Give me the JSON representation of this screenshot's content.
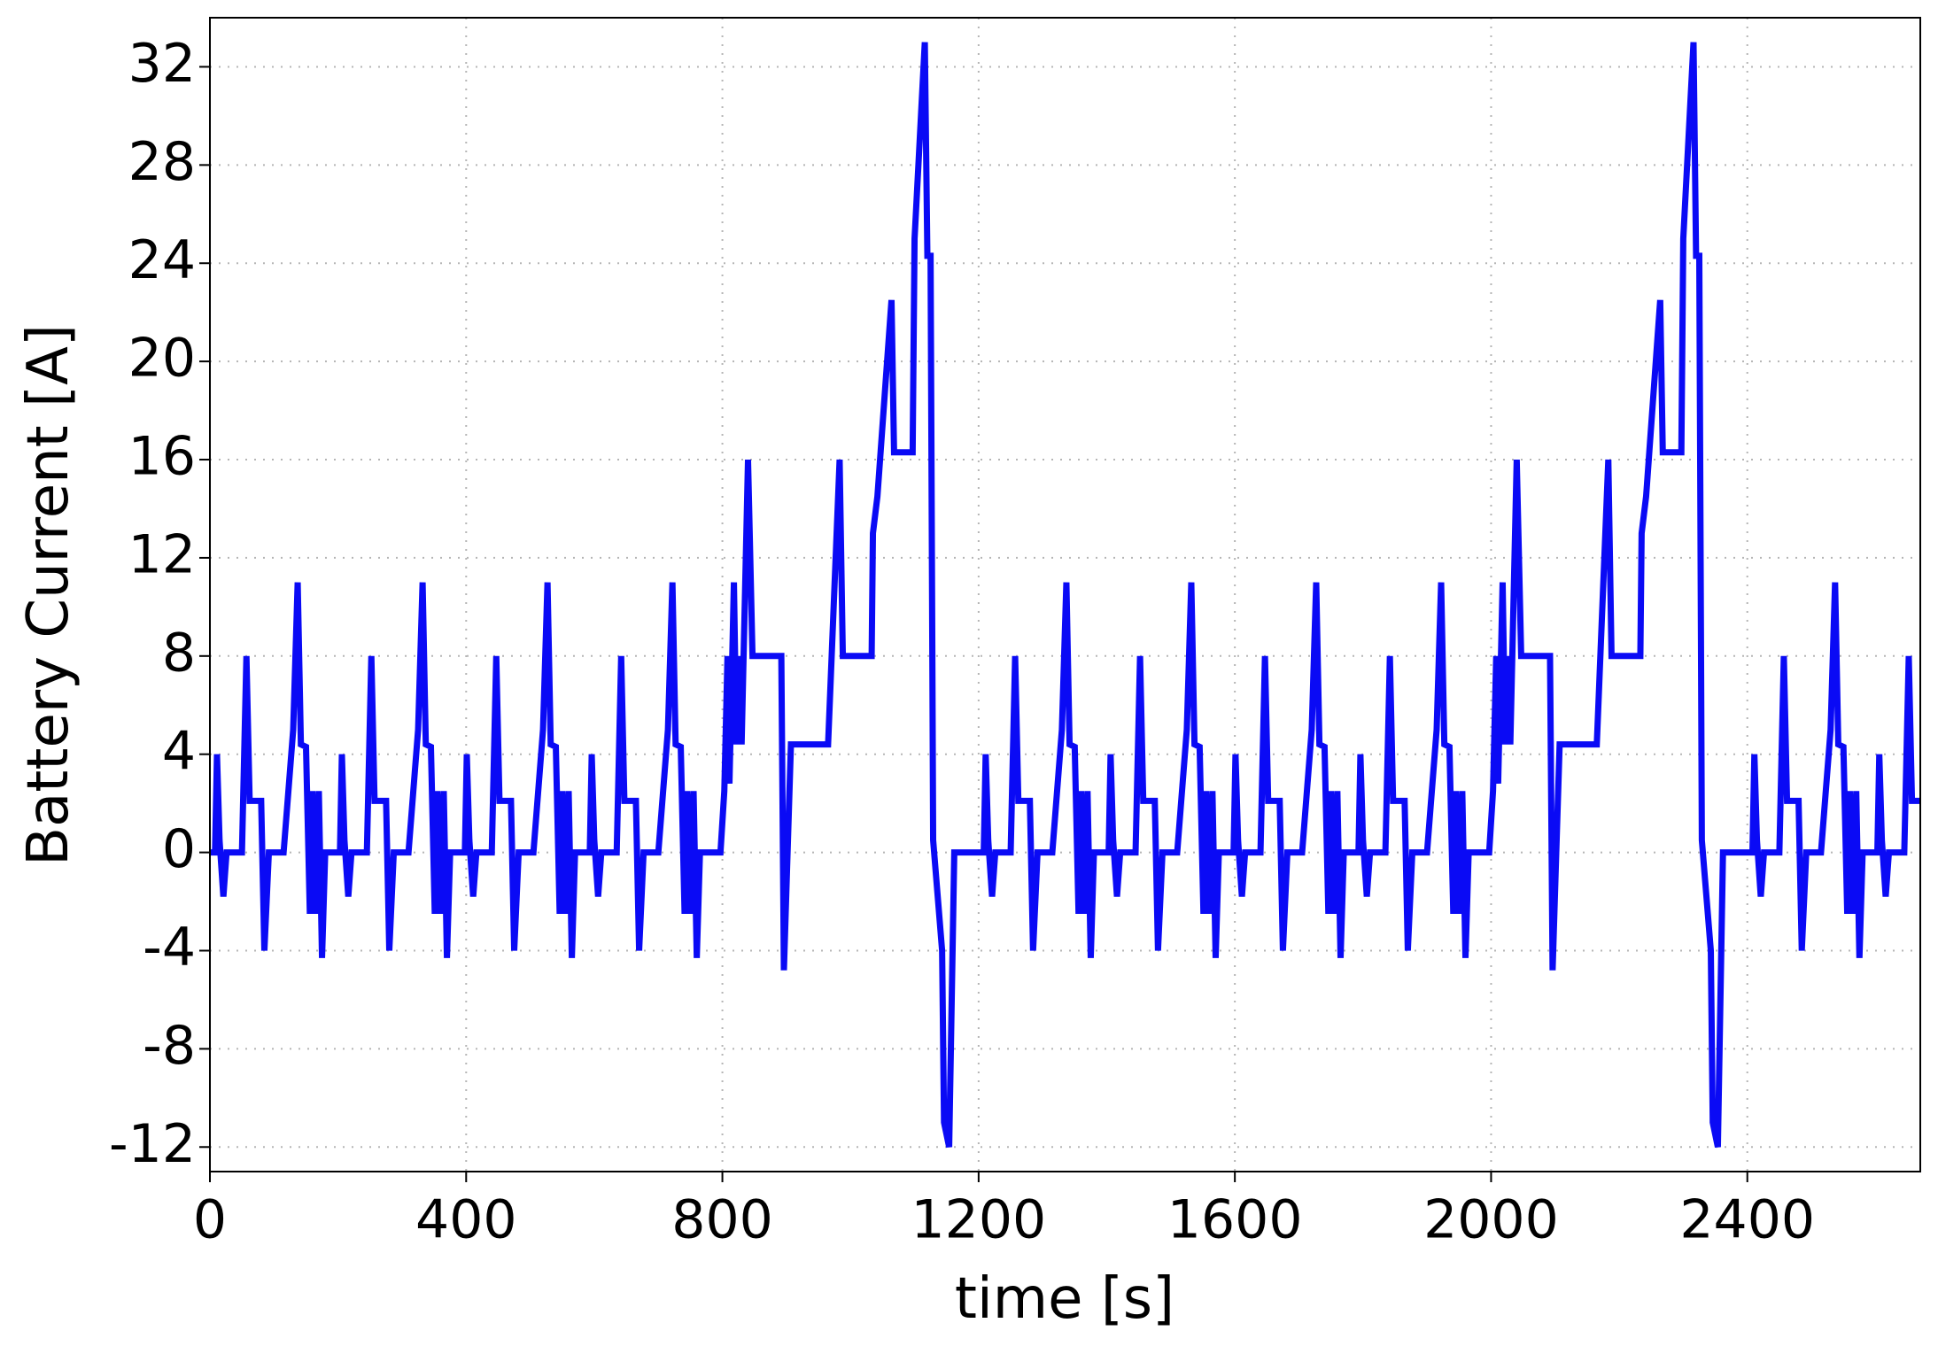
{
  "chart_data": {
    "type": "line",
    "x_label": "time [s]",
    "y_label": "Battery Current [A]",
    "xlim": [
      0,
      2670
    ],
    "ylim": [
      -13,
      34
    ],
    "xticks": [
      0,
      400,
      800,
      1200,
      1600,
      2000,
      2400
    ],
    "yticks": [
      -12,
      -8,
      -4,
      0,
      4,
      8,
      12,
      16,
      20,
      24,
      28,
      32
    ],
    "grid": true,
    "x": [
      0,
      8,
      11,
      15,
      21,
      26,
      50,
      57,
      62,
      80,
      85,
      92,
      115,
      130,
      137,
      142,
      150,
      156,
      160,
      165,
      170,
      175,
      180,
      195,
      203,
      206,
      210,
      216,
      221,
      245,
      252,
      257,
      275,
      280,
      287,
      310,
      325,
      332,
      337,
      345,
      351,
      355,
      360,
      365,
      370,
      375,
      390,
      398,
      401,
      405,
      411,
      416,
      440,
      447,
      452,
      470,
      475,
      482,
      505,
      520,
      527,
      532,
      540,
      546,
      550,
      555,
      560,
      565,
      570,
      585,
      593,
      596,
      600,
      606,
      611,
      635,
      642,
      647,
      665,
      670,
      677,
      700,
      715,
      722,
      727,
      735,
      741,
      745,
      750,
      755,
      760,
      765,
      797,
      803,
      808,
      811,
      818,
      822,
      826,
      830,
      840,
      847,
      892,
      896,
      907,
      965,
      983,
      988,
      1033,
      1035,
      1042,
      1064,
      1068,
      1097,
      1100,
      1116,
      1120,
      1125,
      1129,
      1143,
      1146,
      1154,
      1162,
      1200,
      1208,
      1211,
      1215,
      1221,
      1226,
      1250,
      1257,
      1262,
      1280,
      1285,
      1292,
      1315,
      1330,
      1337,
      1342,
      1350,
      1356,
      1360,
      1365,
      1370,
      1375,
      1380,
      1395,
      1403,
      1406,
      1410,
      1416,
      1421,
      1445,
      1452,
      1457,
      1475,
      1480,
      1487,
      1510,
      1525,
      1532,
      1537,
      1545,
      1551,
      1555,
      1560,
      1565,
      1570,
      1575,
      1590,
      1598,
      1601,
      1605,
      1611,
      1616,
      1640,
      1647,
      1652,
      1670,
      1675,
      1682,
      1705,
      1720,
      1727,
      1732,
      1740,
      1746,
      1750,
      1755,
      1760,
      1765,
      1770,
      1785,
      1793,
      1796,
      1800,
      1806,
      1811,
      1835,
      1842,
      1847,
      1865,
      1870,
      1877,
      1900,
      1915,
      1922,
      1927,
      1935,
      1941,
      1945,
      1950,
      1955,
      1960,
      1965,
      1997,
      2003,
      2008,
      2011,
      2018,
      2022,
      2026,
      2030,
      2040,
      2047,
      2092,
      2096,
      2107,
      2165,
      2183,
      2188,
      2233,
      2235,
      2242,
      2264,
      2268,
      2297,
      2300,
      2316,
      2320,
      2325,
      2329,
      2343,
      2346,
      2354,
      2362,
      2400,
      2408,
      2411,
      2415,
      2421,
      2426,
      2450,
      2457,
      2462,
      2480,
      2485,
      2492,
      2515,
      2530,
      2537,
      2542,
      2550,
      2556,
      2560,
      2565,
      2570,
      2575,
      2580,
      2595,
      2603,
      2606,
      2610,
      2616,
      2621,
      2645,
      2652,
      2657,
      2670
    ],
    "series": [
      {
        "name": "Battery Current",
        "color": "#0a0af5",
        "values": [
          0,
          0,
          4,
          0.5,
          -1.8,
          0,
          0,
          8,
          2.1,
          2.1,
          -4,
          0,
          0,
          5,
          11,
          4.4,
          4.3,
          -2.5,
          2.5,
          -2.5,
          2.5,
          -4.3,
          0,
          0,
          0,
          4,
          0.5,
          -1.8,
          0,
          0,
          8,
          2.1,
          2.1,
          -4,
          0,
          0,
          5,
          11,
          4.4,
          4.3,
          -2.5,
          2.5,
          -2.5,
          2.5,
          -4.3,
          0,
          0,
          0,
          4,
          0.5,
          -1.8,
          0,
          0,
          8,
          2.1,
          2.1,
          -4,
          0,
          0,
          5,
          11,
          4.4,
          4.3,
          -2.5,
          2.5,
          -2.5,
          2.5,
          -4.3,
          0,
          0,
          0,
          4,
          0.5,
          -1.8,
          0,
          0,
          8,
          2.1,
          2.1,
          -4,
          0,
          0,
          5,
          11,
          4.4,
          4.3,
          -2.5,
          2.5,
          -2.5,
          2.5,
          -4.3,
          0,
          0,
          2.5,
          8,
          2.8,
          11,
          4.4,
          8,
          4.4,
          16,
          8,
          8,
          -4.8,
          4.4,
          4.4,
          16,
          8,
          8,
          13,
          14.5,
          22.5,
          16.3,
          16.3,
          25,
          33,
          24.3,
          24.3,
          0.5,
          -4,
          -11,
          -12,
          0,
          0,
          0,
          4,
          0.5,
          -1.8,
          0,
          0,
          8,
          2.1,
          2.1,
          -4,
          0,
          0,
          5,
          11,
          4.4,
          4.3,
          -2.5,
          2.5,
          -2.5,
          2.5,
          -4.3,
          0,
          0,
          0,
          4,
          0.5,
          -1.8,
          0,
          0,
          8,
          2.1,
          2.1,
          -4,
          0,
          0,
          5,
          11,
          4.4,
          4.3,
          -2.5,
          2.5,
          -2.5,
          2.5,
          -4.3,
          0,
          0,
          0,
          4,
          0.5,
          -1.8,
          0,
          0,
          8,
          2.1,
          2.1,
          -4,
          0,
          0,
          5,
          11,
          4.4,
          4.3,
          -2.5,
          2.5,
          -2.5,
          2.5,
          -4.3,
          0,
          0,
          0,
          4,
          0.5,
          -1.8,
          0,
          0,
          8,
          2.1,
          2.1,
          -4,
          0,
          0,
          5,
          11,
          4.4,
          4.3,
          -2.5,
          2.5,
          -2.5,
          2.5,
          -4.3,
          0,
          0,
          2.5,
          8,
          2.8,
          11,
          4.4,
          8,
          4.4,
          16,
          8,
          8,
          -4.8,
          4.4,
          4.4,
          16,
          8,
          8,
          13,
          14.5,
          22.5,
          16.3,
          16.3,
          25,
          33,
          24.3,
          24.3,
          0.5,
          -4,
          -11,
          -12,
          0,
          0,
          0,
          4,
          0.5,
          -1.8,
          0,
          0,
          8,
          2.1,
          2.1,
          -4,
          0,
          0,
          5,
          11,
          4.4,
          4.3,
          -2.5,
          2.5,
          -2.5,
          2.5,
          -4.3,
          0,
          0,
          0,
          4,
          0.5,
          -1.8,
          0,
          0,
          8,
          2.1,
          2.1
        ]
      }
    ]
  }
}
